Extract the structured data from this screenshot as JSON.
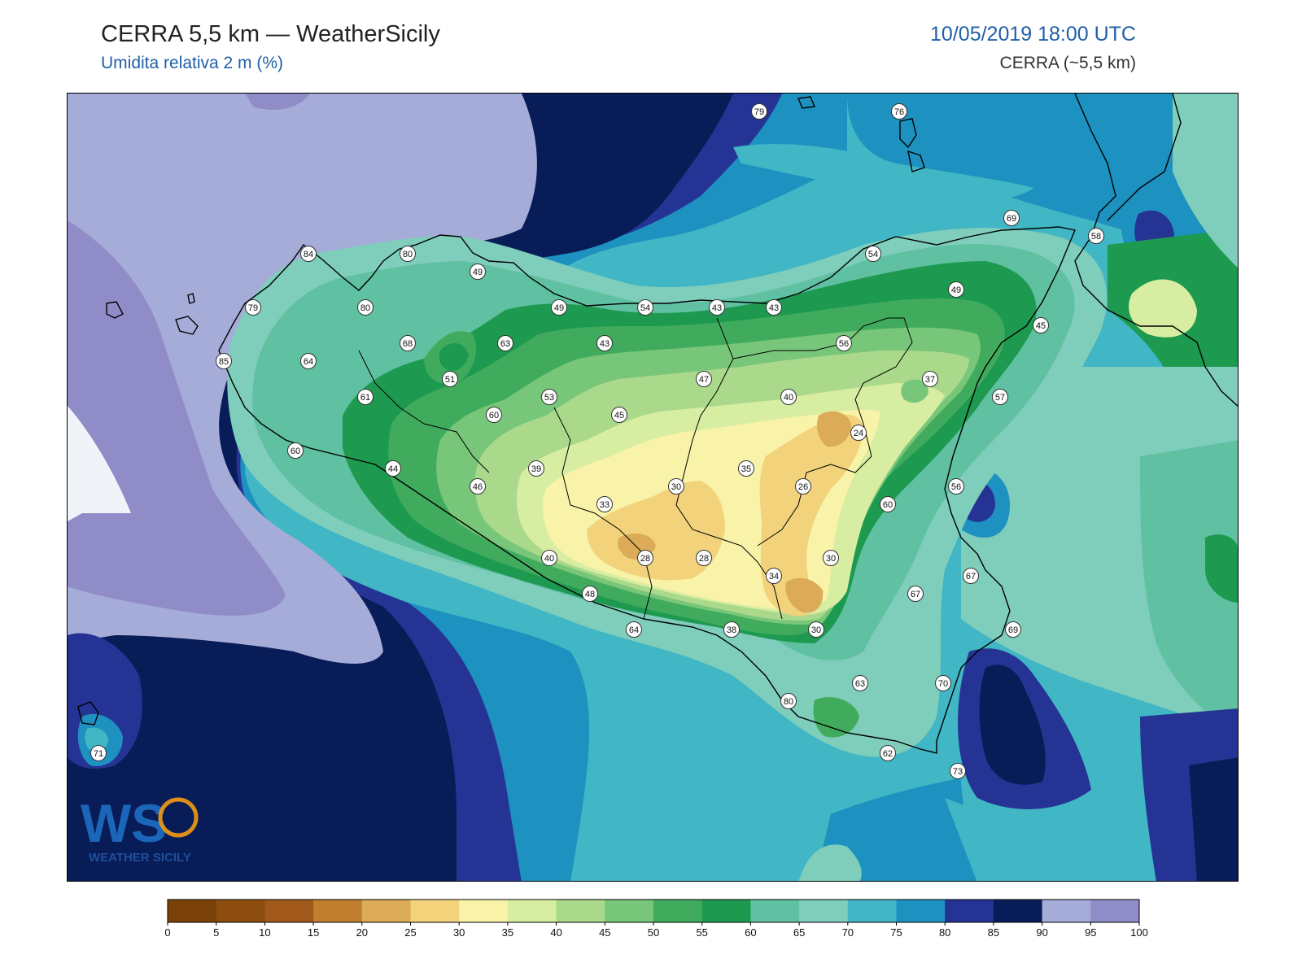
{
  "header": {
    "title": "CERRA 5,5 km — WeatherSicily",
    "subtitle": "Umidita relativa 2 m (%)",
    "datetime": "10/05/2019 18:00 UTC",
    "model": "CERRA (~5,5 km)"
  },
  "logo": {
    "mark": "WS",
    "text": "WEATHER SICILY"
  },
  "colorbar": {
    "ticks": [
      "0",
      "5",
      "10",
      "15",
      "20",
      "25",
      "30",
      "35",
      "40",
      "45",
      "50",
      "55",
      "60",
      "65",
      "70",
      "75",
      "80",
      "85",
      "90",
      "95",
      "100"
    ],
    "colors": [
      "#7a4208",
      "#8c4d0e",
      "#a0591a",
      "#c07f2e",
      "#dcab58",
      "#f2d37c",
      "#f8f3a8",
      "#d7eda1",
      "#abd98c",
      "#78c679",
      "#41ab5d",
      "#1d9a50",
      "#5fc0a2",
      "#7fcdbb",
      "#41b6c4",
      "#1d91c0",
      "#253494",
      "#081d58",
      "#a6acd8",
      "#8f8cc8"
    ]
  },
  "stations": [
    {
      "v": "79"
    },
    {
      "v": "76"
    },
    {
      "v": "69"
    },
    {
      "v": "58"
    },
    {
      "v": "84"
    },
    {
      "v": "80"
    },
    {
      "v": "49"
    },
    {
      "v": "54"
    },
    {
      "v": "79"
    },
    {
      "v": "80"
    },
    {
      "v": "49"
    },
    {
      "v": "54"
    },
    {
      "v": "43"
    },
    {
      "v": "43"
    },
    {
      "v": "49"
    },
    {
      "v": "85"
    },
    {
      "v": "64"
    },
    {
      "v": "68"
    },
    {
      "v": "63"
    },
    {
      "v": "43"
    },
    {
      "v": "56"
    },
    {
      "v": "45"
    },
    {
      "v": "61"
    },
    {
      "v": "51"
    },
    {
      "v": "53"
    },
    {
      "v": "47"
    },
    {
      "v": "40"
    },
    {
      "v": "37"
    },
    {
      "v": "57"
    },
    {
      "v": "60"
    },
    {
      "v": "45"
    },
    {
      "v": "24"
    },
    {
      "v": "60"
    },
    {
      "v": "44"
    },
    {
      "v": "39"
    },
    {
      "v": "35"
    },
    {
      "v": "46"
    },
    {
      "v": "30"
    },
    {
      "v": "26"
    },
    {
      "v": "56"
    },
    {
      "v": "33"
    },
    {
      "v": "60"
    },
    {
      "v": "40"
    },
    {
      "v": "28"
    },
    {
      "v": "28"
    },
    {
      "v": "30"
    },
    {
      "v": "67"
    },
    {
      "v": "34"
    },
    {
      "v": "48"
    },
    {
      "v": "67"
    },
    {
      "v": "64"
    },
    {
      "v": "38"
    },
    {
      "v": "30"
    },
    {
      "v": "69"
    },
    {
      "v": "63"
    },
    {
      "v": "70"
    },
    {
      "v": "80"
    },
    {
      "v": "71"
    },
    {
      "v": "62"
    },
    {
      "v": "73"
    }
  ]
}
